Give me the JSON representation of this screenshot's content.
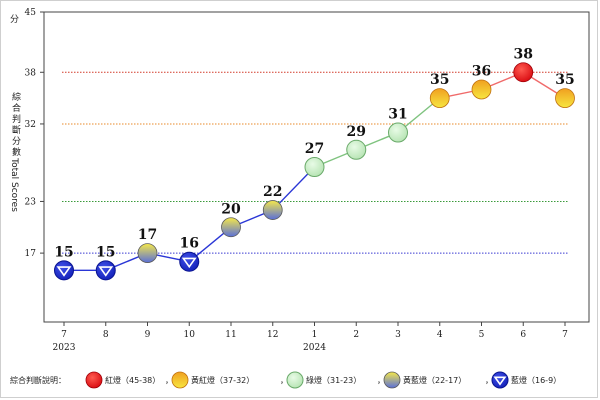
{
  "chart_data": {
    "type": "line",
    "title": "",
    "y_unit": "分",
    "ylabel_cn": "綜合判斷分數",
    "ylabel_en": "Total Scores",
    "ylim": [
      9,
      45
    ],
    "y_ticks": [
      {
        "label": "45",
        "value": 45
      },
      {
        "label": "38",
        "value": 38
      },
      {
        "label": "32",
        "value": 32
      },
      {
        "label": "23",
        "value": 23
      },
      {
        "label": "17",
        "value": 17
      }
    ],
    "reference_lines": [
      {
        "value": 38,
        "color": "#d23a2a"
      },
      {
        "value": 32,
        "color": "#e88a2a"
      },
      {
        "value": 23,
        "color": "#3a9a3a"
      },
      {
        "value": 17,
        "color": "#3a3ad2"
      }
    ],
    "categories": [
      "7",
      "8",
      "9",
      "10",
      "11",
      "12",
      "1",
      "2",
      "3",
      "4",
      "5",
      "6",
      "7"
    ],
    "year_labels": [
      {
        "index": 0,
        "label": "2023"
      },
      {
        "index": 6,
        "label": "2024"
      }
    ],
    "series": [
      {
        "values": [
          15,
          15,
          17,
          16,
          20,
          22,
          27,
          29,
          31,
          35,
          36,
          38,
          35
        ],
        "signals": [
          "blue",
          "blue",
          "yellow_blue",
          "blue",
          "yellow_blue",
          "yellow_blue",
          "green",
          "green",
          "green",
          "yellow_red",
          "yellow_red",
          "red",
          "yellow_red"
        ]
      }
    ],
    "legend": {
      "placement": "bottom",
      "prefix": "綜合判斷說明：",
      "items": [
        {
          "signal": "red",
          "label": "紅燈（45-38）"
        },
        {
          "signal": "yellow_red",
          "label": "黃紅燈（37-32）"
        },
        {
          "signal": "green",
          "label": "綠燈（31-23）"
        },
        {
          "signal": "yellow_blue",
          "label": "黃藍燈（22-17）"
        },
        {
          "signal": "blue",
          "label": "藍燈（16-9）"
        }
      ],
      "separator": "，"
    },
    "colors": {
      "red": "#e8141a",
      "yellow_red_top": "#f0a020",
      "yellow_red_bottom": "#f7e640",
      "green": "#c9efc6",
      "yellow_blue_top": "#f5e84a",
      "yellow_blue_bottom": "#5a6fd8",
      "blue": "#1f2fd0",
      "line_blue": "#2a36d6",
      "line_green": "#7fc37f",
      "line_red": "#f06a6a"
    }
  }
}
